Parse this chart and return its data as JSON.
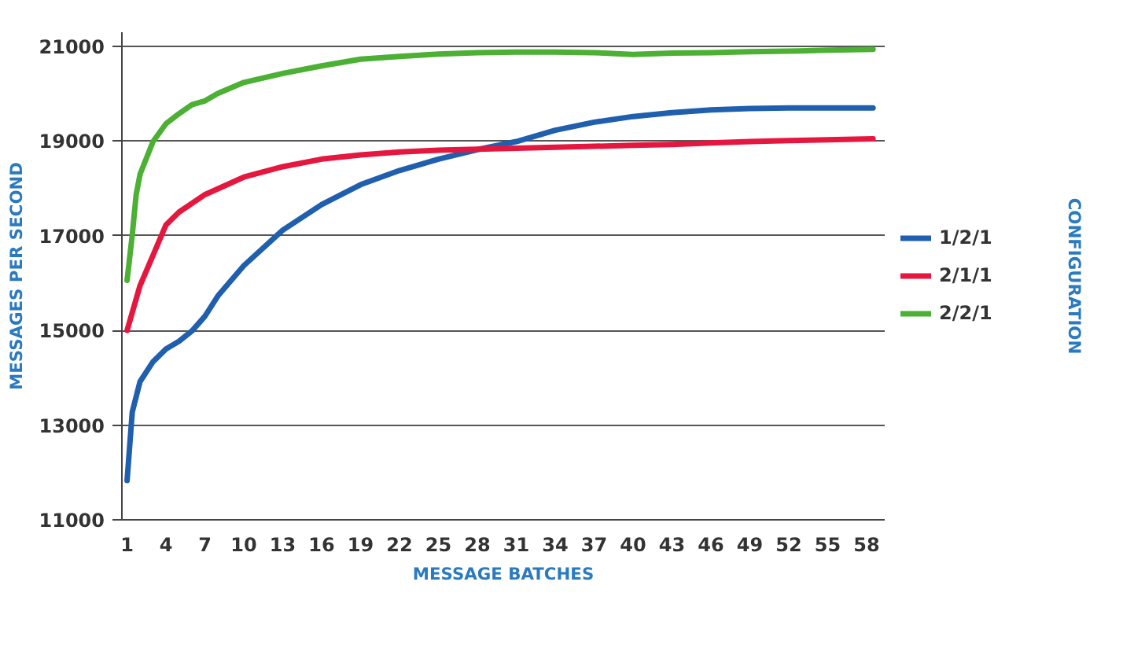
{
  "chart_data": {
    "type": "line",
    "xlabel": "MESSAGE BATCHES",
    "ylabel": "MESSAGES PER SECOND",
    "legend_title": "CONFIGURATION",
    "xlim": [
      0.6,
      59.4
    ],
    "xticks": [
      1,
      4,
      7,
      10,
      13,
      16,
      19,
      22,
      25,
      28,
      31,
      34,
      37,
      40,
      43,
      46,
      49,
      52,
      55,
      58
    ],
    "ylim": [
      11000,
      21300
    ],
    "yticks": [
      11000,
      13000,
      15000,
      17000,
      19000,
      21000
    ],
    "grid": "y",
    "legend": "right",
    "marker": "none",
    "line_style": "solid",
    "series": [
      {
        "name": "1/2/1",
        "color": "#1f5fad",
        "x": [
          1,
          1.4,
          2,
          3,
          4,
          5,
          6,
          7,
          8,
          10,
          13,
          16,
          19,
          22,
          25,
          28,
          31,
          34,
          37,
          40,
          43,
          46,
          49,
          52,
          55,
          58.5
        ],
        "values": [
          11830,
          13280,
          13920,
          14340,
          14610,
          14770,
          14990,
          15300,
          15730,
          16370,
          17120,
          17660,
          18080,
          18380,
          18620,
          18820,
          18990,
          19230,
          19400,
          19520,
          19600,
          19660,
          19690,
          19700,
          19700,
          19700
        ]
      },
      {
        "name": "2/1/1",
        "color": "#e5173f",
        "x": [
          1,
          2,
          3,
          4,
          5,
          7,
          10,
          13,
          16,
          19,
          22,
          25,
          28,
          31,
          34,
          37,
          40,
          43,
          46,
          49,
          52,
          55,
          58.5
        ],
        "values": [
          15000,
          15950,
          16590,
          17230,
          17500,
          17870,
          18240,
          18460,
          18620,
          18710,
          18770,
          18810,
          18830,
          18850,
          18870,
          18890,
          18910,
          18930,
          18960,
          18990,
          19010,
          19030,
          19050
        ]
      },
      {
        "name": "2/2/1",
        "color": "#4cb034",
        "x": [
          1,
          1.4,
          1.7,
          2,
          3,
          4,
          5,
          6,
          7,
          8,
          10,
          13,
          16,
          19,
          22,
          25,
          28,
          31,
          34,
          37,
          40,
          43,
          46,
          49,
          52,
          55,
          58.5
        ],
        "values": [
          16060,
          17020,
          17870,
          18300,
          18990,
          19370,
          19580,
          19770,
          19850,
          20010,
          20240,
          20430,
          20590,
          20730,
          20790,
          20840,
          20870,
          20880,
          20880,
          20870,
          20830,
          20860,
          20870,
          20890,
          20900,
          20920,
          20940
        ]
      }
    ]
  }
}
